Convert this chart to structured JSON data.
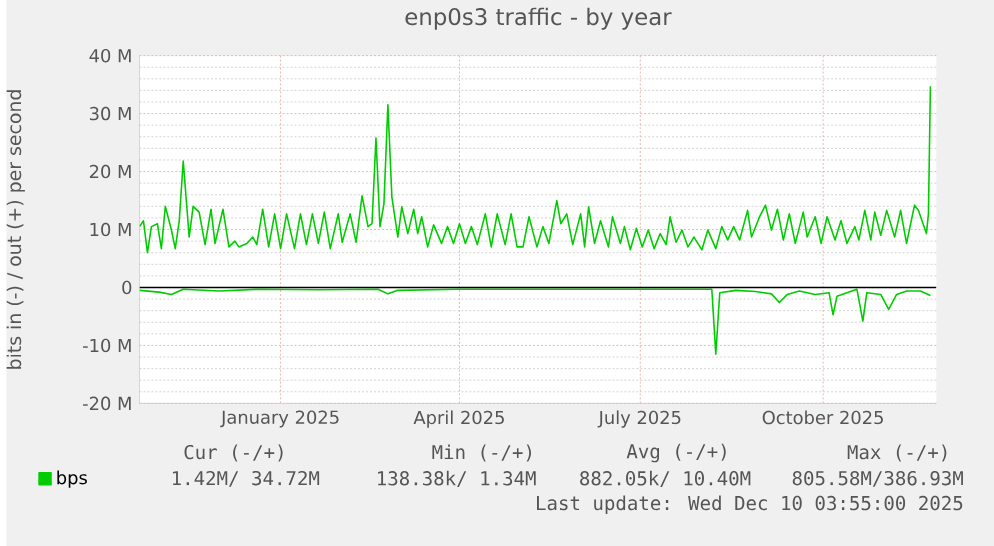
{
  "chart_data": {
    "type": "line",
    "title": "enp0s3 traffic - by year",
    "ylabel": "bits in (-) / out (+) per second",
    "xlim": [
      "2024-10-22",
      "2025-11-27"
    ],
    "xticks": [
      {
        "value": "2025-01-01",
        "label": "January 2025"
      },
      {
        "value": "2025-04-01",
        "label": "April 2025"
      },
      {
        "value": "2025-07-01",
        "label": "July 2025"
      },
      {
        "value": "2025-10-01",
        "label": "October 2025"
      }
    ],
    "ylim": [
      -20,
      40
    ],
    "yticks": [
      {
        "value": -20,
        "label": "-20 M"
      },
      {
        "value": -10,
        "label": "-10 M"
      },
      0,
      {
        "value": 10,
        "label": "10 M"
      },
      {
        "value": 20,
        "label": "20 M"
      },
      {
        "value": 30,
        "label": "30 M"
      },
      {
        "value": 40,
        "label": "40 M"
      }
    ],
    "grid": true,
    "legend": "bottom left",
    "marker": "none",
    "line_style": "solid",
    "series": [
      {
        "name": "bps",
        "color": "#00cc00",
        "x": [
          "2024-10-22",
          "2024-10-24",
          "2024-10-26",
          "2024-10-28",
          "2024-10-31",
          "2024-11-02",
          "2024-11-04",
          "2024-11-07",
          "2024-11-09",
          "2024-11-11",
          "2024-11-13",
          "2024-11-16",
          "2024-11-18",
          "2024-11-21",
          "2024-11-24",
          "2024-11-27",
          "2024-11-29",
          "2024-12-03",
          "2024-12-06",
          "2024-12-09",
          "2024-12-11",
          "2024-12-15",
          "2024-12-18",
          "2024-12-20",
          "2024-12-23",
          "2024-12-26",
          "2024-12-29",
          "2025-01-01",
          "2025-01-04",
          "2025-01-08",
          "2025-01-11",
          "2025-01-14",
          "2025-01-17",
          "2025-01-20",
          "2025-01-23",
          "2025-01-26",
          "2025-01-30",
          "2025-02-01",
          "2025-02-05",
          "2025-02-08",
          "2025-02-11",
          "2025-02-14",
          "2025-02-16",
          "2025-02-18",
          "2025-02-20",
          "2025-02-22",
          "2025-02-24",
          "2025-02-26",
          "2025-03-01",
          "2025-03-03",
          "2025-03-06",
          "2025-03-09",
          "2025-03-11",
          "2025-03-13",
          "2025-03-16",
          "2025-03-19",
          "2025-03-23",
          "2025-03-26",
          "2025-03-29",
          "2025-04-01",
          "2025-04-04",
          "2025-04-07",
          "2025-04-10",
          "2025-04-14",
          "2025-04-17",
          "2025-04-20",
          "2025-04-24",
          "2025-04-27",
          "2025-04-30",
          "2025-05-03",
          "2025-05-06",
          "2025-05-10",
          "2025-05-13",
          "2025-05-16",
          "2025-05-20",
          "2025-05-22",
          "2025-05-25",
          "2025-05-28",
          "2025-06-01",
          "2025-06-03",
          "2025-06-05",
          "2025-06-08",
          "2025-06-11",
          "2025-06-15",
          "2025-06-17",
          "2025-06-21",
          "2025-06-23",
          "2025-06-26",
          "2025-06-29",
          "2025-07-02",
          "2025-07-05",
          "2025-07-08",
          "2025-07-11",
          "2025-07-14",
          "2025-07-16",
          "2025-07-19",
          "2025-07-22",
          "2025-07-25",
          "2025-07-28",
          "2025-08-01",
          "2025-08-04",
          "2025-08-08",
          "2025-08-11",
          "2025-08-14",
          "2025-08-17",
          "2025-08-20",
          "2025-08-24",
          "2025-08-26",
          "2025-08-30",
          "2025-09-02",
          "2025-09-05",
          "2025-09-08",
          "2025-09-11",
          "2025-09-14",
          "2025-09-17",
          "2025-09-21",
          "2025-09-23",
          "2025-09-27",
          "2025-09-30",
          "2025-10-03",
          "2025-10-07",
          "2025-10-10",
          "2025-10-13",
          "2025-10-17",
          "2025-10-19",
          "2025-10-22",
          "2025-10-25",
          "2025-10-27",
          "2025-10-30",
          "2025-11-02",
          "2025-11-06",
          "2025-11-09",
          "2025-11-12",
          "2025-11-16",
          "2025-11-18",
          "2025-11-22",
          "2025-11-23",
          "2025-11-24"
        ],
        "values": [
          10.5,
          11.5,
          6,
          10.5,
          11,
          6.7,
          14,
          10,
          6.7,
          11.5,
          21.8,
          8.7,
          14,
          13,
          7.4,
          13.5,
          7.6,
          13.5,
          7,
          8,
          7,
          7.6,
          8.7,
          7.4,
          13.5,
          7,
          12.7,
          6.7,
          12.7,
          6.7,
          12.7,
          7.4,
          12.7,
          7.6,
          13,
          6.7,
          12.7,
          7.8,
          12.7,
          7.8,
          15.8,
          10.5,
          11,
          25.8,
          10.5,
          14.4,
          31.5,
          15.6,
          8.7,
          13.9,
          9.3,
          13.5,
          9.3,
          12.2,
          7,
          10.8,
          7.6,
          10.5,
          7.6,
          11,
          7.6,
          10.5,
          7.4,
          12.7,
          7,
          12.7,
          7.4,
          12.7,
          7,
          7,
          12.2,
          7,
          10.5,
          7.6,
          15,
          11,
          12.7,
          7.4,
          12.7,
          7,
          13.9,
          7.6,
          11.5,
          7,
          12.2,
          7.6,
          10.5,
          6.5,
          10.2,
          7,
          9.9,
          6.7,
          9.3,
          7.4,
          12.2,
          7.8,
          9.9,
          7,
          8.7,
          6.5,
          9.9,
          6.7,
          10.5,
          8.2,
          10.5,
          8.2,
          13.3,
          8.7,
          12.2,
          14.2,
          9.9,
          13.5,
          8.2,
          12.7,
          7.6,
          13,
          8.7,
          12.2,
          7.6,
          12.2,
          8.2,
          11.5,
          7.6,
          10.5,
          8.2,
          13.3,
          8.2,
          13,
          9,
          13.3,
          8.7,
          13.3,
          7.6,
          14.2,
          13.3,
          9.3,
          12.7,
          34.7
        ]
      },
      {
        "color": "#00cc00",
        "x": [
          "2024-10-22",
          "2024-11-01",
          "2024-11-07",
          "2024-11-13",
          "2024-12-01",
          "2024-12-21",
          "2025-01-20",
          "2025-02-19",
          "2025-02-24",
          "2025-03-01",
          "2025-03-31",
          "2025-05-10",
          "2025-06-29",
          "2025-08-06",
          "2025-08-08",
          "2025-08-10",
          "2025-08-18",
          "2025-08-28",
          "2025-09-05",
          "2025-09-09",
          "2025-09-13",
          "2025-09-19",
          "2025-09-27",
          "2025-10-04",
          "2025-10-06",
          "2025-10-08",
          "2025-10-13",
          "2025-10-18",
          "2025-10-21",
          "2025-10-23",
          "2025-10-30",
          "2025-11-03",
          "2025-11-07",
          "2025-11-12",
          "2025-11-19",
          "2025-11-24"
        ],
        "values": [
          -0.5,
          -0.8,
          -1.2,
          -0.3,
          -0.6,
          -0.3,
          -0.4,
          -0.3,
          -1.1,
          -0.5,
          -0.3,
          -0.3,
          -0.3,
          -0.3,
          -11.5,
          -0.9,
          -0.5,
          -0.7,
          -1.1,
          -2.6,
          -1.2,
          -0.6,
          -1.2,
          -0.9,
          -4.7,
          -1.5,
          -0.9,
          -0.3,
          -5.8,
          -0.9,
          -1.2,
          -3.8,
          -1.2,
          -0.6,
          -0.6,
          -1.4
        ]
      }
    ],
    "ref_lines": [
      {
        "axis": "y",
        "value": 0,
        "color": "#000000"
      }
    ],
    "annotations": [
      "Cur (-/+)",
      "Min (-/+)",
      "Avg (-/+)",
      "Max (-/+)",
      "1.42M/ 34.72M",
      "138.38k/   1.34M",
      "882.05k/ 10.40M",
      "805.58M/386.93M",
      "Last update: Wed Dec 10 03:55:00 2025"
    ]
  }
}
